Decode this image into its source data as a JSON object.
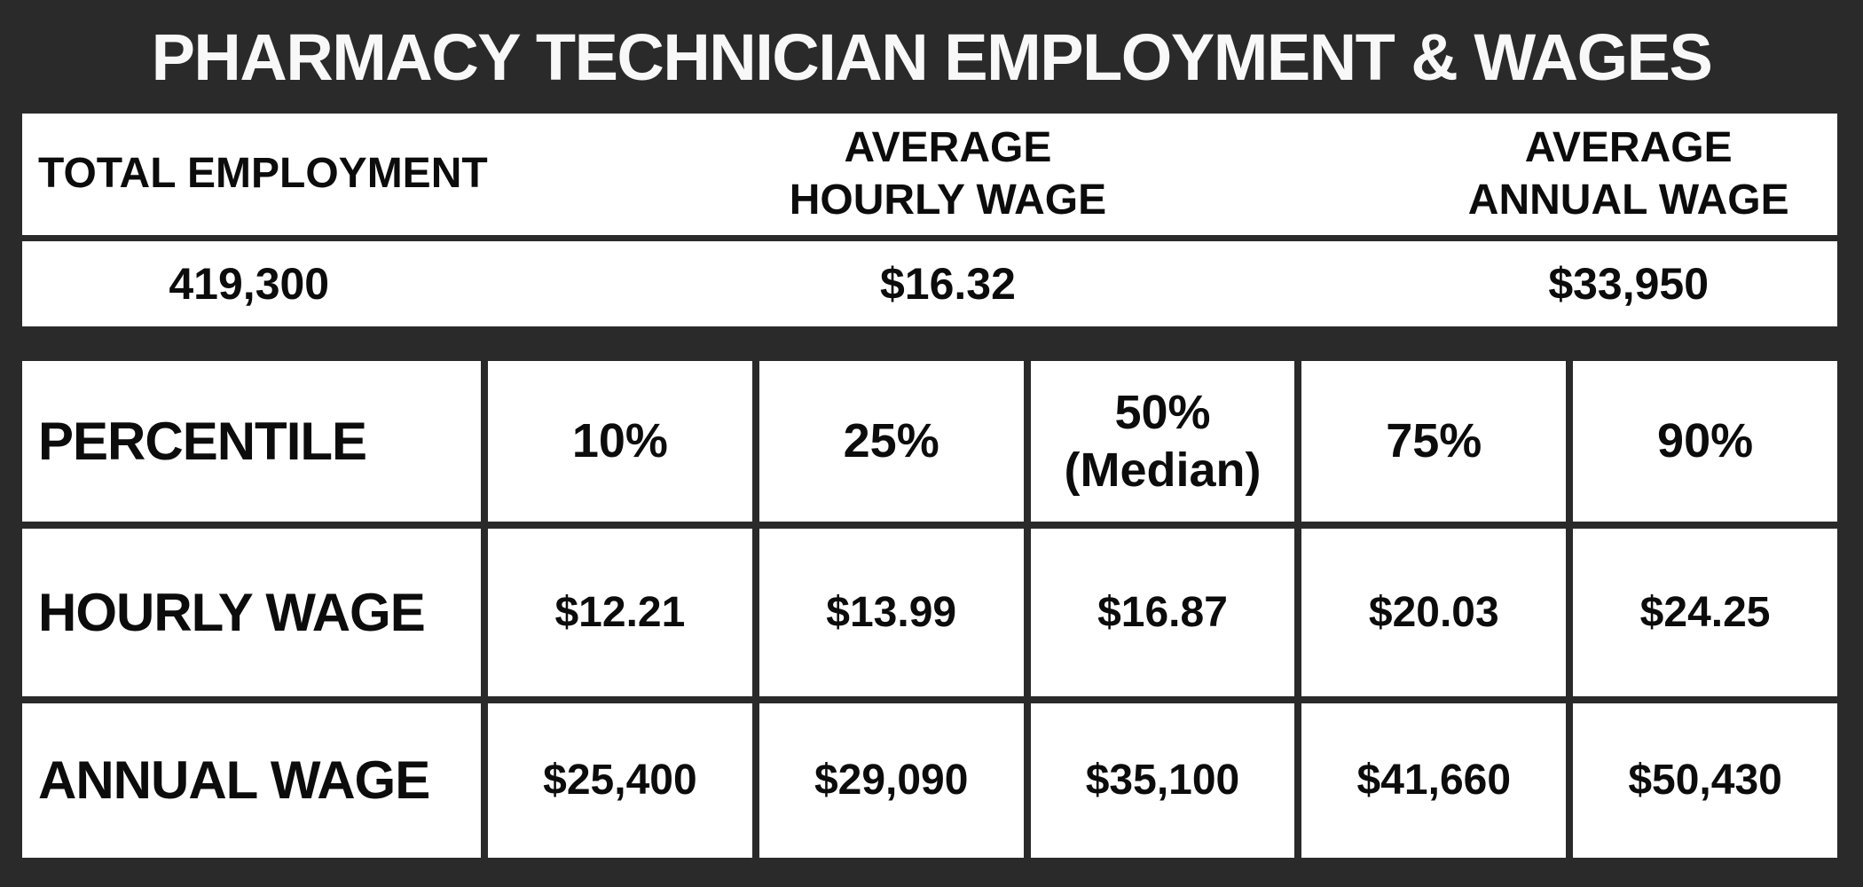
{
  "title": "PHARMACY TECHNICIAN EMPLOYMENT & WAGES",
  "summary": {
    "total_employment": {
      "header": "TOTAL EMPLOYMENT",
      "value": "419,300"
    },
    "average_hourly_wage": {
      "header_line1": "AVERAGE",
      "header_line2": "HOURLY WAGE",
      "value": "$16.32"
    },
    "average_annual_wage": {
      "header_line1": "AVERAGE",
      "header_line2": "ANNUAL WAGE",
      "value": "$33,950"
    }
  },
  "percentile_table": {
    "row_headers": [
      "PERCENTILE",
      "HOURLY WAGE",
      "ANNUAL WAGE"
    ],
    "percentiles": [
      "10%",
      "25%",
      "50%",
      "75%",
      "90%"
    ],
    "median_note": "(Median)",
    "hourly": [
      "$12.21",
      "$13.99",
      "$16.87",
      "$20.03",
      "$24.25"
    ],
    "annual": [
      "$25,400",
      "$29,090",
      "$35,100",
      "$41,660",
      "$50,430"
    ]
  },
  "colors": {
    "background": "#2b2a2a",
    "cell": "#ffffff",
    "title_text": "#f8f8f8",
    "table_text": "#0c0c0c"
  },
  "chart_data": {
    "type": "table",
    "title": "PHARMACY TECHNICIAN EMPLOYMENT & WAGES",
    "summary": {
      "total_employment": 419300,
      "average_hourly_wage": 16.32,
      "average_annual_wage": 33950
    },
    "percentile_columns": [
      "10%",
      "25%",
      "50% (Median)",
      "75%",
      "90%"
    ],
    "rows": [
      {
        "label": "HOURLY WAGE",
        "values": [
          12.21,
          13.99,
          16.87,
          20.03,
          24.25
        ]
      },
      {
        "label": "ANNUAL WAGE",
        "values": [
          25400,
          29090,
          35100,
          41660,
          50430
        ]
      }
    ]
  }
}
